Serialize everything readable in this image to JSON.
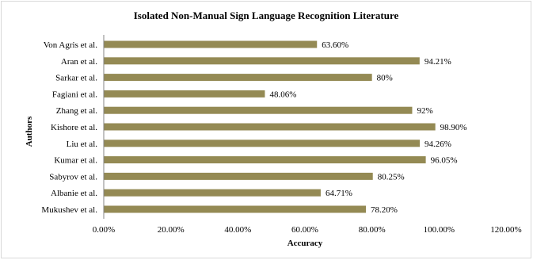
{
  "chart_data": {
    "type": "bar",
    "orientation": "horizontal",
    "title": "Isolated Non-Manual Sign Language Recognition Literature",
    "xlabel": "Accuracy",
    "ylabel": "Authors",
    "xlim": [
      0,
      120
    ],
    "xticks": [
      "0.00%",
      "20.00%",
      "40.00%",
      "60.00%",
      "80.00%",
      "100.00%",
      "120.00%"
    ],
    "grid": false,
    "legend": "none",
    "categories": [
      "Von Agris et al.",
      "Aran et al.",
      "Sarkar et al.",
      "Fagiani et al.",
      "Zhang et al.",
      "Kishore et al.",
      "Liu et al.",
      "Kumar et al.",
      "Sabyrov et al.",
      "Albanie et al.",
      "Mukushev et al."
    ],
    "values": [
      63.6,
      94.21,
      80,
      48.06,
      92,
      98.9,
      94.26,
      96.05,
      80.25,
      64.71,
      78.2
    ],
    "data_labels": [
      "63.60%",
      "94.21%",
      "80%",
      "48.06%",
      "92%",
      "98.90%",
      "94.26%",
      "96.05%",
      "80.25%",
      "64.71%",
      "78.20%"
    ],
    "bar_color": "#948a54"
  }
}
